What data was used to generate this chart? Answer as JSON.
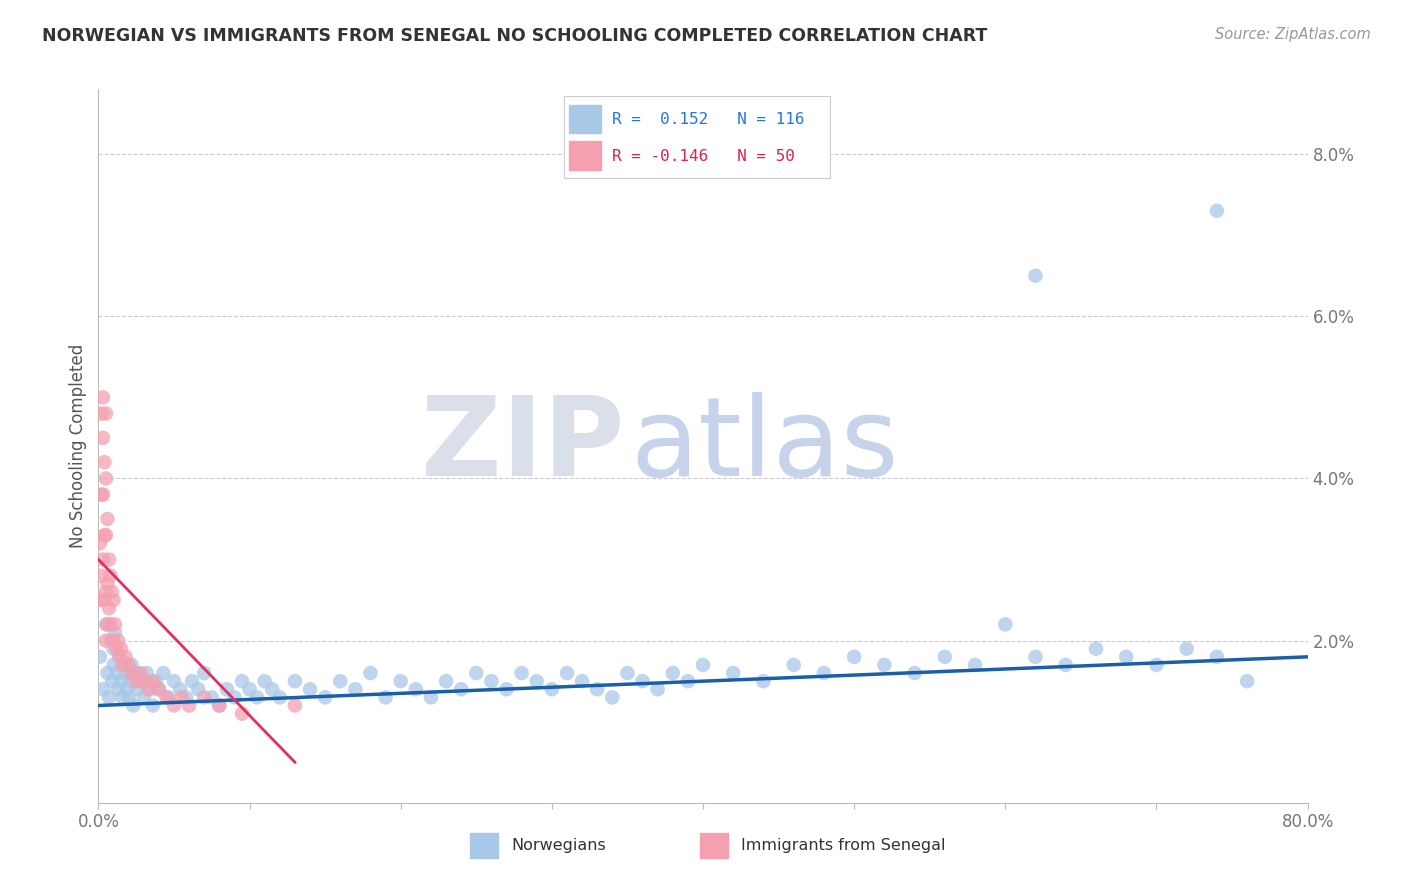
{
  "title": "NORWEGIAN VS IMMIGRANTS FROM SENEGAL NO SCHOOLING COMPLETED CORRELATION CHART",
  "source": "Source: ZipAtlas.com",
  "ylabel": "No Schooling Completed",
  "xlim": [
    0.0,
    0.8
  ],
  "ylim": [
    0.0,
    0.088
  ],
  "blue_color": "#a8c8e8",
  "pink_color": "#f4a0b0",
  "blue_line_color": "#1a5fa8",
  "pink_line_color": "#e03060",
  "background_color": "#ffffff",
  "grid_color": "#cccccc",
  "title_color": "#333333",
  "axis_label_color": "#555555",
  "tick_color": "#777777",
  "norwegians_x": [
    0.001,
    0.003,
    0.005,
    0.006,
    0.007,
    0.008,
    0.009,
    0.01,
    0.01,
    0.011,
    0.012,
    0.013,
    0.014,
    0.015,
    0.016,
    0.017,
    0.018,
    0.019,
    0.02,
    0.021,
    0.022,
    0.023,
    0.025,
    0.026,
    0.028,
    0.03,
    0.032,
    0.034,
    0.036,
    0.038,
    0.04,
    0.043,
    0.046,
    0.05,
    0.054,
    0.058,
    0.062,
    0.066,
    0.07,
    0.075,
    0.08,
    0.085,
    0.09,
    0.095,
    0.1,
    0.105,
    0.11,
    0.115,
    0.12,
    0.13,
    0.14,
    0.15,
    0.16,
    0.17,
    0.18,
    0.19,
    0.2,
    0.21,
    0.22,
    0.23,
    0.24,
    0.25,
    0.26,
    0.27,
    0.28,
    0.29,
    0.3,
    0.31,
    0.32,
    0.33,
    0.34,
    0.35,
    0.36,
    0.37,
    0.38,
    0.39,
    0.4,
    0.42,
    0.44,
    0.46,
    0.48,
    0.5,
    0.52,
    0.54,
    0.56,
    0.58,
    0.6,
    0.62,
    0.64,
    0.66,
    0.68,
    0.7,
    0.72,
    0.74,
    0.76,
    0.62,
    0.74
  ],
  "norwegians_y": [
    0.018,
    0.014,
    0.022,
    0.016,
    0.013,
    0.02,
    0.015,
    0.019,
    0.017,
    0.021,
    0.016,
    0.014,
    0.018,
    0.015,
    0.013,
    0.017,
    0.016,
    0.014,
    0.013,
    0.015,
    0.017,
    0.012,
    0.016,
    0.014,
    0.015,
    0.013,
    0.016,
    0.014,
    0.012,
    0.015,
    0.014,
    0.016,
    0.013,
    0.015,
    0.014,
    0.013,
    0.015,
    0.014,
    0.016,
    0.013,
    0.012,
    0.014,
    0.013,
    0.015,
    0.014,
    0.013,
    0.015,
    0.014,
    0.013,
    0.015,
    0.014,
    0.013,
    0.015,
    0.014,
    0.016,
    0.013,
    0.015,
    0.014,
    0.013,
    0.015,
    0.014,
    0.016,
    0.015,
    0.014,
    0.016,
    0.015,
    0.014,
    0.016,
    0.015,
    0.014,
    0.013,
    0.016,
    0.015,
    0.014,
    0.016,
    0.015,
    0.017,
    0.016,
    0.015,
    0.017,
    0.016,
    0.018,
    0.017,
    0.016,
    0.018,
    0.017,
    0.022,
    0.018,
    0.017,
    0.019,
    0.018,
    0.017,
    0.019,
    0.018,
    0.015,
    0.065,
    0.073
  ],
  "senegal_x": [
    0.001,
    0.001,
    0.002,
    0.002,
    0.002,
    0.003,
    0.003,
    0.003,
    0.003,
    0.004,
    0.004,
    0.004,
    0.005,
    0.005,
    0.005,
    0.005,
    0.005,
    0.006,
    0.006,
    0.006,
    0.007,
    0.007,
    0.008,
    0.008,
    0.009,
    0.01,
    0.01,
    0.011,
    0.012,
    0.013,
    0.014,
    0.015,
    0.016,
    0.018,
    0.02,
    0.022,
    0.025,
    0.028,
    0.03,
    0.033,
    0.036,
    0.04,
    0.045,
    0.05,
    0.055,
    0.06,
    0.07,
    0.08,
    0.095,
    0.13
  ],
  "senegal_y": [
    0.032,
    0.025,
    0.048,
    0.038,
    0.028,
    0.05,
    0.045,
    0.038,
    0.03,
    0.042,
    0.033,
    0.025,
    0.048,
    0.04,
    0.033,
    0.026,
    0.02,
    0.035,
    0.027,
    0.022,
    0.03,
    0.024,
    0.028,
    0.022,
    0.026,
    0.025,
    0.02,
    0.022,
    0.019,
    0.02,
    0.018,
    0.019,
    0.017,
    0.018,
    0.017,
    0.016,
    0.015,
    0.016,
    0.015,
    0.014,
    0.015,
    0.014,
    0.013,
    0.012,
    0.013,
    0.012,
    0.013,
    0.012,
    0.011,
    0.012
  ],
  "blue_trend_start_y": 0.012,
  "blue_trend_end_y": 0.018,
  "pink_trend_start_y": 0.03,
  "pink_trend_end_y": 0.005,
  "pink_trend_end_x": 0.13
}
